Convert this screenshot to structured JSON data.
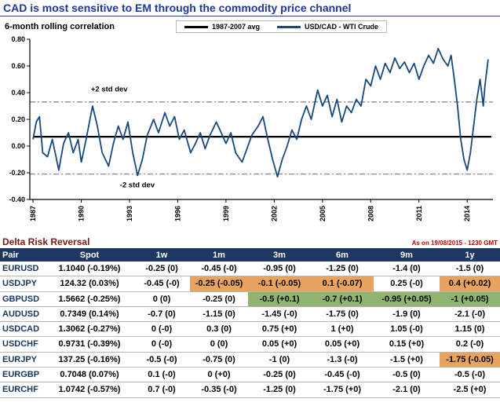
{
  "title": "CAD is most sensitive to EM through the commodity price channel",
  "chart_data": {
    "type": "line",
    "title": "6-month rolling correlation",
    "xlim": [
      1986.8,
      2015.6
    ],
    "ylim": [
      -0.4,
      0.8
    ],
    "yticks": [
      "0.80",
      "0.60",
      "0.40",
      "0.20",
      "0.00",
      "-0.20",
      "-0.40"
    ],
    "xticks": [
      1987,
      1990,
      1993,
      1996,
      1999,
      2002,
      2005,
      2008,
      2011,
      2014
    ],
    "legend_position": "top",
    "grid": false,
    "series": [
      {
        "name": "1987-2007 avg",
        "color": "#000000",
        "x": [
          1987.0,
          2015.5
        ],
        "y": [
          0.07,
          0.07
        ]
      },
      {
        "name": "USD/CAD - WTI Crude",
        "color": "#17477f",
        "x": [
          1987.0,
          1987.2,
          1987.4,
          1987.6,
          1987.9,
          1988.2,
          1988.6,
          1988.9,
          1989.2,
          1989.5,
          1989.8,
          1990.0,
          1990.3,
          1990.7,
          1991.0,
          1991.3,
          1991.7,
          1992.0,
          1992.3,
          1992.6,
          1992.9,
          1993.2,
          1993.5,
          1993.8,
          1994.1,
          1994.5,
          1994.8,
          1995.2,
          1995.5,
          1995.8,
          1996.1,
          1996.4,
          1996.8,
          1997.1,
          1997.4,
          1997.7,
          1998.0,
          1998.4,
          1998.7,
          1999.0,
          1999.3,
          1999.6,
          2000.0,
          2000.3,
          2000.6,
          2001.0,
          2001.3,
          2001.6,
          2001.9,
          2002.2,
          2002.5,
          2002.8,
          2003.1,
          2003.4,
          2003.7,
          2004.0,
          2004.3,
          2004.7,
          2005.0,
          2005.3,
          2005.6,
          2005.9,
          2006.2,
          2006.5,
          2006.8,
          2007.1,
          2007.4,
          2007.7,
          2008.0,
          2008.3,
          2008.6,
          2008.9,
          2009.2,
          2009.5,
          2009.8,
          2010.1,
          2010.4,
          2010.7,
          2011.0,
          2011.3,
          2011.6,
          2011.9,
          2012.2,
          2012.5,
          2012.8,
          2013.0,
          2013.2,
          2013.4,
          2013.6,
          2013.8,
          2014.0,
          2014.2,
          2014.4,
          2014.6,
          2014.8,
          2015.0,
          2015.1,
          2015.3
        ],
        "y": [
          0.05,
          0.18,
          0.22,
          -0.05,
          -0.08,
          0.05,
          -0.18,
          0.02,
          0.1,
          -0.05,
          0.05,
          -0.12,
          0.05,
          0.3,
          0.15,
          -0.05,
          -0.15,
          0.02,
          0.15,
          0.05,
          0.18,
          -0.05,
          -0.22,
          -0.1,
          0.08,
          0.2,
          0.1,
          0.25,
          0.15,
          0.22,
          0.05,
          0.12,
          -0.05,
          0.02,
          0.1,
          -0.02,
          0.08,
          0.18,
          0.1,
          0.02,
          0.1,
          -0.05,
          -0.12,
          -0.02,
          0.08,
          0.15,
          0.22,
          0.05,
          -0.1,
          -0.23,
          -0.1,
          0.0,
          0.12,
          0.05,
          0.2,
          0.3,
          0.2,
          0.42,
          0.3,
          0.38,
          0.22,
          0.35,
          0.18,
          0.3,
          0.25,
          0.35,
          0.3,
          0.5,
          0.45,
          0.6,
          0.5,
          0.62,
          0.55,
          0.66,
          0.58,
          0.63,
          0.55,
          0.62,
          0.5,
          0.6,
          0.68,
          0.62,
          0.73,
          0.65,
          0.6,
          0.68,
          0.5,
          0.3,
          0.05,
          -0.1,
          -0.18,
          -0.05,
          0.15,
          0.35,
          0.5,
          0.3,
          0.45,
          0.65
        ]
      }
    ],
    "ref_lines": [
      {
        "y": 0.33,
        "style": "dashdot",
        "color": "#7f7f7f"
      },
      {
        "y": -0.21,
        "style": "dashdot",
        "color": "#7f7f7f"
      }
    ],
    "annotations": [
      {
        "text": "+2 std dev",
        "x": 1990.6,
        "y": 0.41
      },
      {
        "text": "-2 std dev",
        "x": 1992.4,
        "y": -0.31
      }
    ]
  },
  "table": {
    "title": "Delta Risk Reversal",
    "timestamp": "As on 19/08/2015 - 1230 GMT",
    "columns": [
      "Pair",
      "Spot",
      "1w",
      "1m",
      "3m",
      "6m",
      "9m",
      "1y"
    ],
    "rows": [
      {
        "pair": "EURUSD",
        "cells": [
          "1.1040 (-0.19%)",
          "-0.25 (0)",
          "-0.45 (-0)",
          "-0.95 (0)",
          "-1.25 (0)",
          "-1.4 (0)",
          "-1.5 (0)"
        ],
        "highlights": [
          null,
          null,
          null,
          null,
          null,
          null,
          null
        ]
      },
      {
        "pair": "USDJPY",
        "cells": [
          "124.32 (0.03%)",
          "-0.45 (-0)",
          "-0.25 (-0.05)",
          "-0.1 (-0.05)",
          "0.1 (-0.07)",
          "0.25 (-0)",
          "0.4 (+0.02)"
        ],
        "highlights": [
          null,
          null,
          "orange",
          "orange",
          "orange",
          null,
          "orange"
        ]
      },
      {
        "pair": "GBPUSD",
        "cells": [
          "1.5662 (-0.25%)",
          "0 (0)",
          "-0.25 (0)",
          "-0.5 (+0.1)",
          "-0.7 (+0.1)",
          "-0.95 (+0.05)",
          "-1 (+0.05)"
        ],
        "highlights": [
          null,
          null,
          null,
          "green",
          "green",
          "green",
          "green"
        ]
      },
      {
        "pair": "AUDUSD",
        "cells": [
          "0.7349 (0.14%)",
          "-0.7 (0)",
          "-1.15 (0)",
          "-1.45 (-0)",
          "-1.75 (0)",
          "-1.9 (0)",
          "-2.1 (-0)"
        ],
        "highlights": [
          null,
          null,
          null,
          null,
          null,
          null,
          null
        ]
      },
      {
        "pair": "USDCAD",
        "cells": [
          "1.3062 (-0.27%)",
          "0 (-0)",
          "0.3 (0)",
          "0.75 (+0)",
          "1 (+0)",
          "1.05 (-0)",
          "1.15 (0)"
        ],
        "highlights": [
          null,
          null,
          null,
          null,
          null,
          null,
          null
        ]
      },
      {
        "pair": "USDCHF",
        "cells": [
          "0.9731 (-0.39%)",
          "0 (-0)",
          "0 (0)",
          "0.05 (+0)",
          "0.05 (+0)",
          "0.15 (+0)",
          "0.2 (-0)"
        ],
        "highlights": [
          null,
          null,
          null,
          null,
          null,
          null,
          null
        ]
      },
      {
        "pair": "EURJPY",
        "cells": [
          "137.25 (-0.16%)",
          "-0.5 (-0)",
          "-0.75 (0)",
          "-1 (0)",
          "-1.3 (-0)",
          "-1.5 (+0)",
          "-1.75 (-0.05)"
        ],
        "highlights": [
          null,
          null,
          null,
          null,
          null,
          null,
          "orange"
        ]
      },
      {
        "pair": "EURGBP",
        "cells": [
          "0.7048 (0.07%)",
          "0.1 (-0)",
          "0 (+0)",
          "-0.25 (0)",
          "-0.45 (-0)",
          "-0.5 (0)",
          "-0.5 (-0)"
        ],
        "highlights": [
          null,
          null,
          null,
          null,
          null,
          null,
          null
        ]
      },
      {
        "pair": "EURCHF",
        "cells": [
          "1.0742 (-0.57%)",
          "0.7 (-0)",
          "-0.35 (-0)",
          "-1.25 (0)",
          "-1.75 (+0)",
          "-2.1 (0)",
          "-2.5 (+0)"
        ],
        "highlights": [
          null,
          null,
          null,
          null,
          null,
          null,
          null
        ]
      }
    ]
  },
  "colors": {
    "title_blue": "#1f3799",
    "line_blue": "#17477f",
    "table_header_navy": "#1f3864",
    "table_title_maroon": "#7b170e",
    "timestamp_red": "#c00000",
    "highlight_orange": "#e8a45f",
    "highlight_green": "#92b471"
  }
}
